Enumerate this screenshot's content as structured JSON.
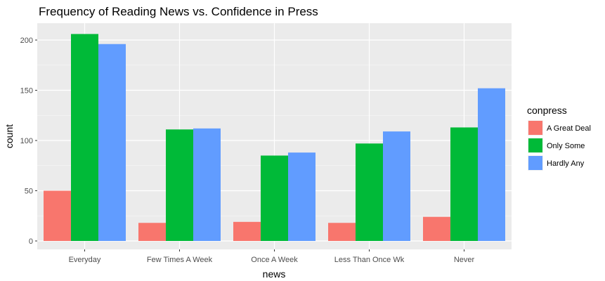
{
  "chart_data": {
    "type": "bar",
    "title": "Frequency of Reading News vs. Confidence in Press",
    "xlabel": "news",
    "ylabel": "count",
    "categories": [
      "Everyday",
      "Few Times A Week",
      "Once A Week",
      "Less Than Once Wk",
      "Never"
    ],
    "series": [
      {
        "name": "A Great Deal",
        "color": "#F8766D",
        "values": [
          50,
          18,
          19,
          18,
          24
        ]
      },
      {
        "name": "Only Some",
        "color": "#00BA38",
        "values": [
          206,
          111,
          85,
          97,
          113
        ]
      },
      {
        "name": "Hardly Any",
        "color": "#619CFF",
        "values": [
          196,
          112,
          88,
          109,
          152
        ]
      }
    ],
    "ylim": [
      0,
      220
    ],
    "yticks": [
      0,
      50,
      100,
      150,
      200
    ],
    "legend_title": "conpress",
    "legend_position": "right",
    "grid": true,
    "panel_background": "#EBEBEB",
    "grid_color": "#FFFFFF"
  }
}
